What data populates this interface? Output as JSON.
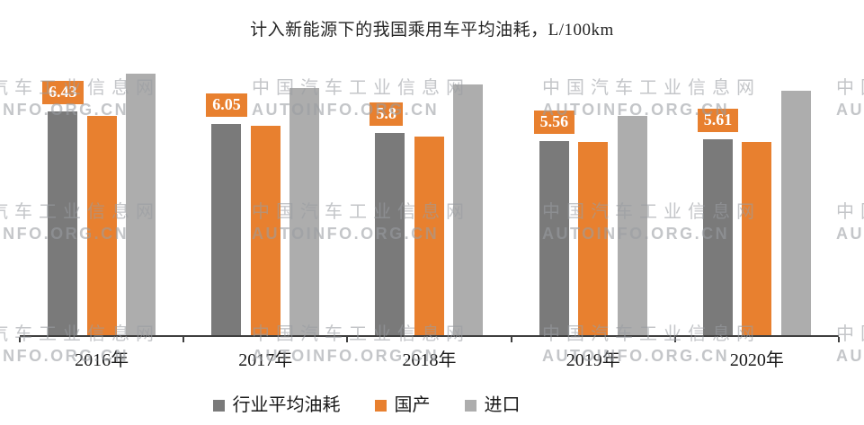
{
  "page": {
    "background": "#ffffff"
  },
  "chart_data": {
    "type": "bar",
    "title": "计入新能源下的我国乘用车平均油耗，L/100km",
    "categories": [
      "2016年",
      "2017年",
      "2018年",
      "2019年",
      "2020年"
    ],
    "series": [
      {
        "key": "industry-average",
        "name": "行业平均油耗",
        "color": "#7a7a7a",
        "values": [
          6.43,
          6.05,
          5.8,
          5.56,
          5.61
        ]
      },
      {
        "key": "domestic",
        "name": "国产",
        "color": "#e8802f",
        "values": [
          6.3,
          6.0,
          5.7,
          5.55,
          5.55
        ],
        "estimated": true
      },
      {
        "key": "imported",
        "name": "进口",
        "color": "#adadad",
        "values": [
          7.5,
          7.1,
          7.2,
          6.3,
          7.0
        ],
        "estimated": true
      }
    ],
    "data_labels": {
      "series": "行业平均油耗",
      "values": [
        "6.43",
        "6.05",
        "5.8",
        "5.56",
        "5.61"
      ],
      "box_color": "#e8802f",
      "text_color": "#ffffff"
    },
    "ylim": [
      0,
      8.1
    ],
    "grid": false,
    "legend_position": "bottom",
    "axis_color": "#3f3f3f"
  },
  "watermark": {
    "line1": "中 国 汽 车 工 业 信 息 网",
    "line2": "AUTOINFO.ORG.CN"
  }
}
